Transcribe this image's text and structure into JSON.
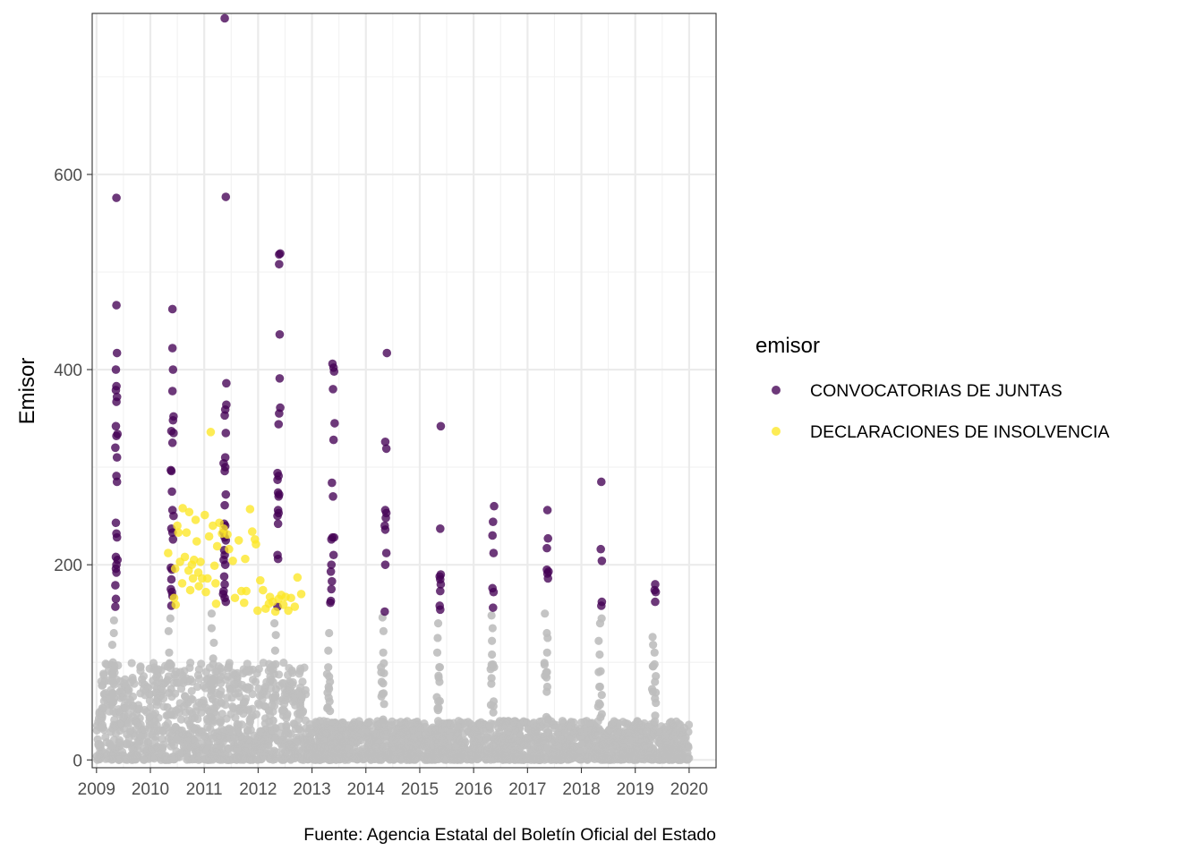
{
  "chart_data": {
    "type": "scatter",
    "title": "",
    "xlabel": "",
    "ylabel": "Emisor",
    "caption": "Fuente: Agencia Estatal del Boletín Oficial del Estado",
    "xlim": [
      2008.92,
      2020.5
    ],
    "ylim": [
      -8,
      765
    ],
    "x_ticks": [
      2009,
      2010,
      2011,
      2012,
      2013,
      2014,
      2015,
      2016,
      2017,
      2018,
      2019,
      2020
    ],
    "x_tick_labels": [
      "2009",
      "2010",
      "2011",
      "2012",
      "2013",
      "2014",
      "2015",
      "2016",
      "2017",
      "2018",
      "2019",
      "2020"
    ],
    "y_ticks": [
      0,
      200,
      400,
      600
    ],
    "y_tick_labels": [
      "0",
      "200",
      "400",
      "600"
    ],
    "grid": true,
    "legend": {
      "title": "emisor",
      "position": "right",
      "entries": [
        {
          "label": "CONVOCATORIAS DE JUNTAS",
          "color": "#440154"
        },
        {
          "label": "DECLARACIONES DE INSOLVENCIA",
          "color": "#FDE725"
        }
      ]
    },
    "background_series": {
      "name": "otros",
      "color": "#BEBEBE",
      "note_bands": [
        {
          "x_from": 2009.0,
          "x_to": 2012.9,
          "y_max": 100
        },
        {
          "x_from": 2012.9,
          "x_to": 2020.0,
          "y_max": 40
        }
      ],
      "spikes": [
        {
          "x": 2009.3,
          "values": [
            143,
            130,
            118,
            100,
            88
          ]
        },
        {
          "x": 2010.35,
          "values": [
            145,
            132,
            110,
            98
          ]
        },
        {
          "x": 2011.15,
          "values": [
            150,
            135,
            120,
            104
          ]
        },
        {
          "x": 2012.3,
          "values": [
            140,
            128,
            112,
            98
          ]
        },
        {
          "x": 2013.3,
          "values": [
            130,
            112,
            95,
            88,
            75,
            60
          ]
        },
        {
          "x": 2014.3,
          "values": [
            146,
            132,
            110,
            95,
            80,
            65
          ]
        },
        {
          "x": 2015.35,
          "values": [
            140,
            125,
            110,
            95,
            80,
            60
          ]
        },
        {
          "x": 2016.35,
          "values": [
            148,
            135,
            122,
            108,
            95,
            78,
            60
          ]
        },
        {
          "x": 2017.35,
          "values": [
            150,
            130,
            125,
            110,
            90,
            75
          ]
        },
        {
          "x": 2018.35,
          "values": [
            145,
            140,
            122,
            108,
            90,
            75
          ]
        },
        {
          "x": 2019.35,
          "values": [
            126,
            118,
            110,
            98,
            80,
            70
          ]
        }
      ]
    },
    "series": [
      {
        "name": "CONVOCATORIAS DE JUNTAS",
        "color": "#440154",
        "points": [
          [
            2009.37,
            576
          ],
          [
            2009.37,
            466
          ],
          [
            2009.38,
            417
          ],
          [
            2009.36,
            400
          ],
          [
            2009.37,
            383
          ],
          [
            2009.36,
            379
          ],
          [
            2009.38,
            372
          ],
          [
            2009.37,
            367
          ],
          [
            2009.36,
            342
          ],
          [
            2009.39,
            334
          ],
          [
            2009.37,
            332
          ],
          [
            2009.35,
            320
          ],
          [
            2009.38,
            310
          ],
          [
            2009.37,
            291
          ],
          [
            2009.38,
            285
          ],
          [
            2009.36,
            243
          ],
          [
            2009.37,
            232
          ],
          [
            2009.38,
            228
          ],
          [
            2009.36,
            208
          ],
          [
            2009.39,
            205
          ],
          [
            2009.37,
            200
          ],
          [
            2009.36,
            196
          ],
          [
            2009.37,
            192
          ],
          [
            2009.35,
            179
          ],
          [
            2009.36,
            165
          ],
          [
            2009.35,
            157
          ],
          [
            2010.41,
            462
          ],
          [
            2010.41,
            422
          ],
          [
            2010.42,
            400
          ],
          [
            2010.41,
            378
          ],
          [
            2010.43,
            352
          ],
          [
            2010.42,
            348
          ],
          [
            2010.39,
            337
          ],
          [
            2010.43,
            335
          ],
          [
            2010.41,
            325
          ],
          [
            2010.38,
            297
          ],
          [
            2010.39,
            296
          ],
          [
            2010.4,
            275
          ],
          [
            2010.41,
            256
          ],
          [
            2010.43,
            250
          ],
          [
            2010.39,
            237
          ],
          [
            2010.41,
            233
          ],
          [
            2010.42,
            226
          ],
          [
            2010.38,
            197
          ],
          [
            2010.4,
            195
          ],
          [
            2010.39,
            185
          ],
          [
            2010.38,
            175
          ],
          [
            2010.4,
            172
          ],
          [
            2010.41,
            168
          ],
          [
            2010.39,
            158
          ],
          [
            2011.38,
            760
          ],
          [
            2011.4,
            577
          ],
          [
            2011.41,
            386
          ],
          [
            2011.41,
            364
          ],
          [
            2011.39,
            359
          ],
          [
            2011.38,
            353
          ],
          [
            2011.4,
            335
          ],
          [
            2011.39,
            310
          ],
          [
            2011.36,
            304
          ],
          [
            2011.39,
            300
          ],
          [
            2011.38,
            296
          ],
          [
            2011.4,
            272
          ],
          [
            2011.38,
            261
          ],
          [
            2011.37,
            242
          ],
          [
            2011.39,
            240
          ],
          [
            2011.36,
            233
          ],
          [
            2011.38,
            228
          ],
          [
            2011.4,
            225
          ],
          [
            2011.37,
            215
          ],
          [
            2011.38,
            210
          ],
          [
            2011.36,
            205
          ],
          [
            2011.39,
            200
          ],
          [
            2011.37,
            188
          ],
          [
            2011.38,
            180
          ],
          [
            2011.36,
            173
          ],
          [
            2011.35,
            170
          ],
          [
            2011.38,
            166
          ],
          [
            2011.4,
            162
          ],
          [
            2012.41,
            519
          ],
          [
            2012.39,
            518
          ],
          [
            2012.39,
            508
          ],
          [
            2012.4,
            436
          ],
          [
            2012.4,
            391
          ],
          [
            2012.41,
            361
          ],
          [
            2012.39,
            355
          ],
          [
            2012.38,
            344
          ],
          [
            2012.36,
            294
          ],
          [
            2012.38,
            291
          ],
          [
            2012.36,
            287
          ],
          [
            2012.37,
            274
          ],
          [
            2012.39,
            272
          ],
          [
            2012.38,
            270
          ],
          [
            2012.37,
            256
          ],
          [
            2012.38,
            253
          ],
          [
            2012.36,
            250
          ],
          [
            2012.37,
            242
          ],
          [
            2012.36,
            210
          ],
          [
            2012.37,
            206
          ],
          [
            2012.36,
            157
          ],
          [
            2013.38,
            406
          ],
          [
            2013.4,
            402
          ],
          [
            2013.41,
            398
          ],
          [
            2013.39,
            380
          ],
          [
            2013.42,
            345
          ],
          [
            2013.4,
            328
          ],
          [
            2013.37,
            284
          ],
          [
            2013.39,
            270
          ],
          [
            2013.38,
            228
          ],
          [
            2013.41,
            228
          ],
          [
            2013.36,
            226
          ],
          [
            2013.4,
            210
          ],
          [
            2013.36,
            200
          ],
          [
            2013.35,
            193
          ],
          [
            2013.37,
            183
          ],
          [
            2013.36,
            175
          ],
          [
            2013.35,
            163
          ],
          [
            2013.34,
            161
          ],
          [
            2014.39,
            417
          ],
          [
            2014.36,
            326
          ],
          [
            2014.38,
            319
          ],
          [
            2014.36,
            256
          ],
          [
            2014.38,
            253
          ],
          [
            2014.37,
            248
          ],
          [
            2014.35,
            240
          ],
          [
            2014.36,
            236
          ],
          [
            2014.38,
            212
          ],
          [
            2014.36,
            200
          ],
          [
            2014.35,
            152
          ],
          [
            2015.39,
            342
          ],
          [
            2015.38,
            237
          ],
          [
            2015.39,
            190
          ],
          [
            2015.37,
            188
          ],
          [
            2015.38,
            185
          ],
          [
            2015.39,
            180
          ],
          [
            2015.38,
            173
          ],
          [
            2015.37,
            158
          ],
          [
            2015.38,
            154
          ],
          [
            2016.38,
            260
          ],
          [
            2016.36,
            244
          ],
          [
            2016.35,
            230
          ],
          [
            2016.37,
            212
          ],
          [
            2016.35,
            176
          ],
          [
            2016.37,
            172
          ],
          [
            2016.36,
            156
          ],
          [
            2017.37,
            256
          ],
          [
            2017.38,
            227
          ],
          [
            2017.36,
            217
          ],
          [
            2017.36,
            195
          ],
          [
            2017.39,
            193
          ],
          [
            2017.37,
            191
          ],
          [
            2017.38,
            186
          ],
          [
            2018.37,
            285
          ],
          [
            2018.36,
            216
          ],
          [
            2018.38,
            204
          ],
          [
            2018.38,
            162
          ],
          [
            2018.37,
            158
          ],
          [
            2019.37,
            180
          ],
          [
            2019.36,
            174
          ],
          [
            2019.38,
            172
          ],
          [
            2019.37,
            162
          ]
        ]
      },
      {
        "name": "DECLARACIONES DE INSOLVENCIA",
        "color": "#FDE725",
        "points": [
          [
            2010.33,
            212
          ],
          [
            2010.46,
            196
          ],
          [
            2010.44,
            166
          ],
          [
            2010.47,
            159
          ],
          [
            2010.5,
            240
          ],
          [
            2010.52,
            233
          ],
          [
            2010.55,
            203
          ],
          [
            2010.6,
            258
          ],
          [
            2010.59,
            181
          ],
          [
            2010.64,
            208
          ],
          [
            2010.67,
            233
          ],
          [
            2010.72,
            254
          ],
          [
            2010.71,
            194
          ],
          [
            2010.74,
            174
          ],
          [
            2010.77,
            200
          ],
          [
            2010.79,
            186
          ],
          [
            2010.81,
            205
          ],
          [
            2010.84,
            246
          ],
          [
            2010.86,
            224
          ],
          [
            2010.89,
            192
          ],
          [
            2010.9,
            178
          ],
          [
            2010.93,
            203
          ],
          [
            2010.96,
            186
          ],
          [
            2011.01,
            251
          ],
          [
            2011.03,
            172
          ],
          [
            2011.06,
            186
          ],
          [
            2011.09,
            229
          ],
          [
            2011.12,
            336
          ],
          [
            2011.16,
            240
          ],
          [
            2011.19,
            199
          ],
          [
            2011.21,
            181
          ],
          [
            2011.22,
            160
          ],
          [
            2011.24,
            219
          ],
          [
            2011.28,
            243
          ],
          [
            2011.33,
            232
          ],
          [
            2011.36,
            237
          ],
          [
            2011.43,
            231
          ],
          [
            2011.46,
            216
          ],
          [
            2011.53,
            204
          ],
          [
            2011.57,
            166
          ],
          [
            2011.64,
            225
          ],
          [
            2011.69,
            173
          ],
          [
            2011.74,
            161
          ],
          [
            2011.76,
            206
          ],
          [
            2011.78,
            173
          ],
          [
            2011.85,
            257
          ],
          [
            2011.89,
            234
          ],
          [
            2011.94,
            226
          ],
          [
            2011.96,
            221
          ],
          [
            2011.99,
            153
          ],
          [
            2012.04,
            184
          ],
          [
            2012.09,
            174
          ],
          [
            2012.14,
            155
          ],
          [
            2012.2,
            160
          ],
          [
            2012.22,
            167
          ],
          [
            2012.27,
            162
          ],
          [
            2012.32,
            152
          ],
          [
            2012.38,
            165
          ],
          [
            2012.43,
            169
          ],
          [
            2012.47,
            159
          ],
          [
            2012.51,
            167
          ],
          [
            2012.56,
            153
          ],
          [
            2012.61,
            166
          ],
          [
            2012.68,
            157
          ],
          [
            2012.73,
            187
          ],
          [
            2012.8,
            170
          ]
        ]
      }
    ]
  }
}
